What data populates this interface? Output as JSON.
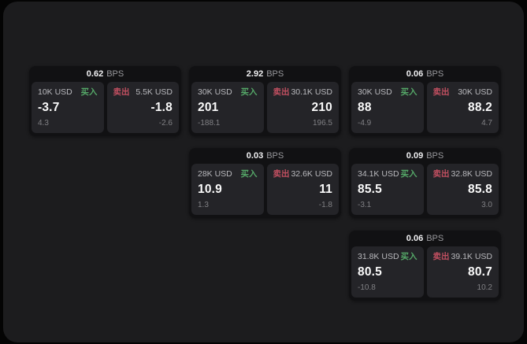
{
  "labels": {
    "buy": "买入",
    "sell": "卖出",
    "bps_unit": "BPS"
  },
  "colors": {
    "buy_green": "#55A868",
    "sell_red": "#C04F60"
  },
  "cards": [
    {
      "bps": "0.62",
      "buy": {
        "size": "10K USD",
        "price": "-3.7",
        "delta": "4.3"
      },
      "sell": {
        "size": "5.5K USD",
        "price": "-1.8",
        "delta": "-2.6"
      }
    },
    {
      "bps": "2.92",
      "buy": {
        "size": "30K USD",
        "price": "201",
        "delta": "-188.1"
      },
      "sell": {
        "size": "30.1K USD",
        "price": "210",
        "delta": "196.5"
      }
    },
    {
      "bps": "0.06",
      "buy": {
        "size": "30K USD",
        "price": "88",
        "delta": "-4.9"
      },
      "sell": {
        "size": "30K USD",
        "price": "88.2",
        "delta": "4.7"
      }
    },
    {
      "bps": "0.03",
      "buy": {
        "size": "28K USD",
        "price": "10.9",
        "delta": "1.3"
      },
      "sell": {
        "size": "32.6K USD",
        "price": "11",
        "delta": "-1.8"
      }
    },
    {
      "bps": "0.09",
      "buy": {
        "size": "34.1K USD",
        "price": "85.5",
        "delta": "-3.1"
      },
      "sell": {
        "size": "32.8K USD",
        "price": "85.8",
        "delta": "3.0"
      }
    },
    {
      "bps": "0.06",
      "buy": {
        "size": "31.8K USD",
        "price": "80.5",
        "delta": "-10.8"
      },
      "sell": {
        "size": "39.1K USD",
        "price": "80.7",
        "delta": "10.2"
      }
    }
  ]
}
